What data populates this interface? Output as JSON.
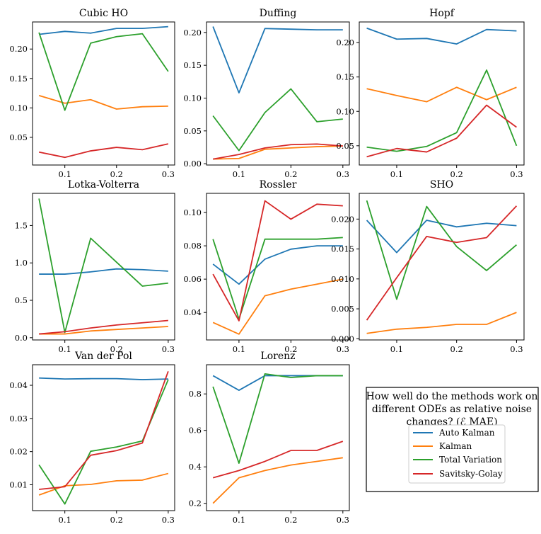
{
  "series_names": [
    "Auto Kalman",
    "Kalman",
    "Total Variation",
    "Savitsky-Golay"
  ],
  "series_colors": [
    "#1f77b4",
    "#ff7f0e",
    "#2ca02c",
    "#d62728"
  ],
  "legend": {
    "title_lines": [
      "How well do the methods work on",
      "different ODEs as relative noise",
      "changes? (ℰ MAE)"
    ]
  },
  "chart_data": [
    {
      "type": "line",
      "title": "Cubic HO",
      "x": [
        0.05,
        0.1,
        0.15,
        0.2,
        0.25,
        0.3
      ],
      "xticks": [
        0.1,
        0.2,
        0.3
      ],
      "xtick_labels": [
        "0.1",
        "0.2",
        "0.3"
      ],
      "ylim": [
        0.003,
        0.246
      ],
      "yticks": [
        0.05,
        0.1,
        0.15,
        0.2
      ],
      "ytick_labels": [
        "0.05",
        "0.10",
        "0.15",
        "0.20"
      ],
      "series": [
        {
          "name": "Auto Kalman",
          "values": [
            0.225,
            0.23,
            0.227,
            0.235,
            0.235,
            0.238
          ]
        },
        {
          "name": "Kalman",
          "values": [
            0.121,
            0.108,
            0.114,
            0.098,
            0.102,
            0.103
          ]
        },
        {
          "name": "Total Variation",
          "values": [
            0.228,
            0.096,
            0.21,
            0.221,
            0.226,
            0.162
          ]
        },
        {
          "name": "Savitsky-Golay",
          "values": [
            0.025,
            0.016,
            0.027,
            0.033,
            0.029,
            0.039
          ]
        }
      ]
    },
    {
      "type": "line",
      "title": "Duffing",
      "x": [
        0.05,
        0.1,
        0.15,
        0.2,
        0.25,
        0.3
      ],
      "xticks": [
        0.1,
        0.2,
        0.3
      ],
      "xtick_labels": [
        "0.1",
        "0.2",
        "0.3"
      ],
      "ylim": [
        -0.002,
        0.216
      ],
      "yticks": [
        0.0,
        0.05,
        0.1,
        0.15,
        0.2
      ],
      "ytick_labels": [
        "0.00",
        "0.05",
        "0.10",
        "0.15",
        "0.20"
      ],
      "series": [
        {
          "name": "Auto Kalman",
          "values": [
            0.209,
            0.108,
            0.206,
            0.205,
            0.204,
            0.204
          ]
        },
        {
          "name": "Kalman",
          "values": [
            0.007,
            0.008,
            0.022,
            0.024,
            0.026,
            0.027
          ]
        },
        {
          "name": "Total Variation",
          "values": [
            0.073,
            0.02,
            0.078,
            0.114,
            0.064,
            0.068
          ]
        },
        {
          "name": "Savitsky-Golay",
          "values": [
            0.007,
            0.014,
            0.024,
            0.029,
            0.03,
            0.027
          ]
        }
      ]
    },
    {
      "type": "line",
      "title": "Hopf",
      "x": [
        0.05,
        0.1,
        0.15,
        0.2,
        0.25,
        0.3
      ],
      "xticks": [
        0.1,
        0.2,
        0.3
      ],
      "xtick_labels": [
        "0.1",
        "0.2",
        "0.3"
      ],
      "ylim": [
        0.022,
        0.23
      ],
      "yticks": [
        0.05,
        0.1,
        0.15,
        0.2
      ],
      "ytick_labels": [
        "0.05",
        "0.10",
        "0.15",
        "0.20"
      ],
      "series": [
        {
          "name": "Auto Kalman",
          "values": [
            0.221,
            0.205,
            0.206,
            0.198,
            0.219,
            0.217
          ]
        },
        {
          "name": "Kalman",
          "values": [
            0.133,
            0.123,
            0.114,
            0.135,
            0.117,
            0.135
          ]
        },
        {
          "name": "Total Variation",
          "values": [
            0.048,
            0.042,
            0.049,
            0.069,
            0.16,
            0.05
          ]
        },
        {
          "name": "Savitsky-Golay",
          "values": [
            0.034,
            0.046,
            0.041,
            0.061,
            0.109,
            0.077
          ]
        }
      ]
    },
    {
      "type": "line",
      "title": "Lotka-Volterra",
      "x": [
        0.05,
        0.1,
        0.15,
        0.2,
        0.25,
        0.3
      ],
      "xticks": [
        0.1,
        0.2,
        0.3
      ],
      "xtick_labels": [
        "0.1",
        "0.2",
        "0.3"
      ],
      "ylim": [
        -0.03,
        1.93
      ],
      "yticks": [
        0.0,
        0.5,
        1.0,
        1.5
      ],
      "ytick_labels": [
        "0.0",
        "0.5",
        "1.0",
        "1.5"
      ],
      "series": [
        {
          "name": "Auto Kalman",
          "values": [
            0.85,
            0.85,
            0.88,
            0.92,
            0.91,
            0.89
          ]
        },
        {
          "name": "Kalman",
          "values": [
            0.05,
            0.05,
            0.09,
            0.11,
            0.13,
            0.15
          ]
        },
        {
          "name": "Total Variation",
          "values": [
            1.86,
            0.07,
            1.33,
            1.01,
            0.69,
            0.73
          ]
        },
        {
          "name": "Savitsky-Golay",
          "values": [
            0.05,
            0.08,
            0.13,
            0.17,
            0.2,
            0.23
          ]
        }
      ]
    },
    {
      "type": "line",
      "title": "Rossler",
      "x": [
        0.05,
        0.1,
        0.15,
        0.2,
        0.25,
        0.3
      ],
      "xticks": [
        0.1,
        0.2,
        0.3
      ],
      "xtick_labels": [
        "0.1",
        "0.2",
        "0.3"
      ],
      "ylim": [
        0.0235,
        0.1115
      ],
      "yticks": [
        0.04,
        0.06,
        0.08,
        0.1
      ],
      "ytick_labels": [
        "0.04",
        "0.06",
        "0.08",
        "0.10"
      ],
      "series": [
        {
          "name": "Auto Kalman",
          "values": [
            0.069,
            0.057,
            0.072,
            0.078,
            0.08,
            0.08
          ]
        },
        {
          "name": "Kalman",
          "values": [
            0.034,
            0.027,
            0.05,
            0.054,
            0.057,
            0.06
          ]
        },
        {
          "name": "Total Variation",
          "values": [
            0.084,
            0.036,
            0.084,
            0.084,
            0.084,
            0.085
          ]
        },
        {
          "name": "Savitsky-Golay",
          "values": [
            0.063,
            0.035,
            0.107,
            0.096,
            0.105,
            0.104
          ]
        }
      ]
    },
    {
      "type": "line",
      "title": "SHO",
      "x": [
        0.05,
        0.1,
        0.15,
        0.2,
        0.25,
        0.3
      ],
      "xticks": [
        0.1,
        0.2,
        0.3
      ],
      "xtick_labels": [
        "0.1",
        "0.2",
        "0.3"
      ],
      "ylim": [
        -0.0002,
        0.0243
      ],
      "yticks": [
        0.0,
        0.005,
        0.01,
        0.015,
        0.02
      ],
      "ytick_labels": [
        "0.000",
        "0.005",
        "0.010",
        "0.015",
        "0.020"
      ],
      "series": [
        {
          "name": "Auto Kalman",
          "values": [
            0.0198,
            0.0144,
            0.0198,
            0.0187,
            0.0193,
            0.0189
          ]
        },
        {
          "name": "Kalman",
          "values": [
            0.0009,
            0.0016,
            0.0019,
            0.0024,
            0.0024,
            0.0044
          ]
        },
        {
          "name": "Total Variation",
          "values": [
            0.0231,
            0.0066,
            0.0221,
            0.0154,
            0.0114,
            0.0157
          ]
        },
        {
          "name": "Savitsky-Golay",
          "values": [
            0.0031,
            0.0102,
            0.0171,
            0.0161,
            0.0169,
            0.0222
          ]
        }
      ]
    },
    {
      "type": "line",
      "title": "Van der Pol",
      "x": [
        0.05,
        0.1,
        0.15,
        0.2,
        0.25,
        0.3
      ],
      "xticks": [
        0.1,
        0.2,
        0.3
      ],
      "xtick_labels": [
        "0.1",
        "0.2",
        "0.3"
      ],
      "ylim": [
        0.0022,
        0.0462
      ],
      "yticks": [
        0.01,
        0.02,
        0.03,
        0.04
      ],
      "ytick_labels": [
        "0.01",
        "0.02",
        "0.03",
        "0.04"
      ],
      "series": [
        {
          "name": "Auto Kalman",
          "values": [
            0.0422,
            0.0419,
            0.042,
            0.042,
            0.0417,
            0.0419
          ]
        },
        {
          "name": "Kalman",
          "values": [
            0.0069,
            0.0097,
            0.0101,
            0.0112,
            0.0114,
            0.0134
          ]
        },
        {
          "name": "Total Variation",
          "values": [
            0.016,
            0.0042,
            0.0201,
            0.0214,
            0.0232,
            0.0417
          ]
        },
        {
          "name": "Savitsky-Golay",
          "values": [
            0.0086,
            0.0094,
            0.0189,
            0.0203,
            0.0226,
            0.0442
          ]
        }
      ]
    },
    {
      "type": "line",
      "title": "Lorenz",
      "x": [
        0.05,
        0.1,
        0.15,
        0.2,
        0.25,
        0.3
      ],
      "xticks": [
        0.1,
        0.2,
        0.3
      ],
      "xtick_labels": [
        "0.1",
        "0.2",
        "0.3"
      ],
      "ylim": [
        0.16,
        0.96
      ],
      "yticks": [
        0.2,
        0.4,
        0.6,
        0.8
      ],
      "ytick_labels": [
        "0.2",
        "0.4",
        "0.6",
        "0.8"
      ],
      "series": [
        {
          "name": "Auto Kalman",
          "values": [
            0.9,
            0.82,
            0.9,
            0.9,
            0.9,
            0.9
          ]
        },
        {
          "name": "Kalman",
          "values": [
            0.2,
            0.34,
            0.38,
            0.41,
            0.43,
            0.45
          ]
        },
        {
          "name": "Total Variation",
          "values": [
            0.84,
            0.42,
            0.91,
            0.89,
            0.9,
            0.9
          ]
        },
        {
          "name": "Savitsky-Golay",
          "values": [
            0.34,
            0.38,
            0.43,
            0.49,
            0.49,
            0.54
          ]
        }
      ]
    }
  ]
}
